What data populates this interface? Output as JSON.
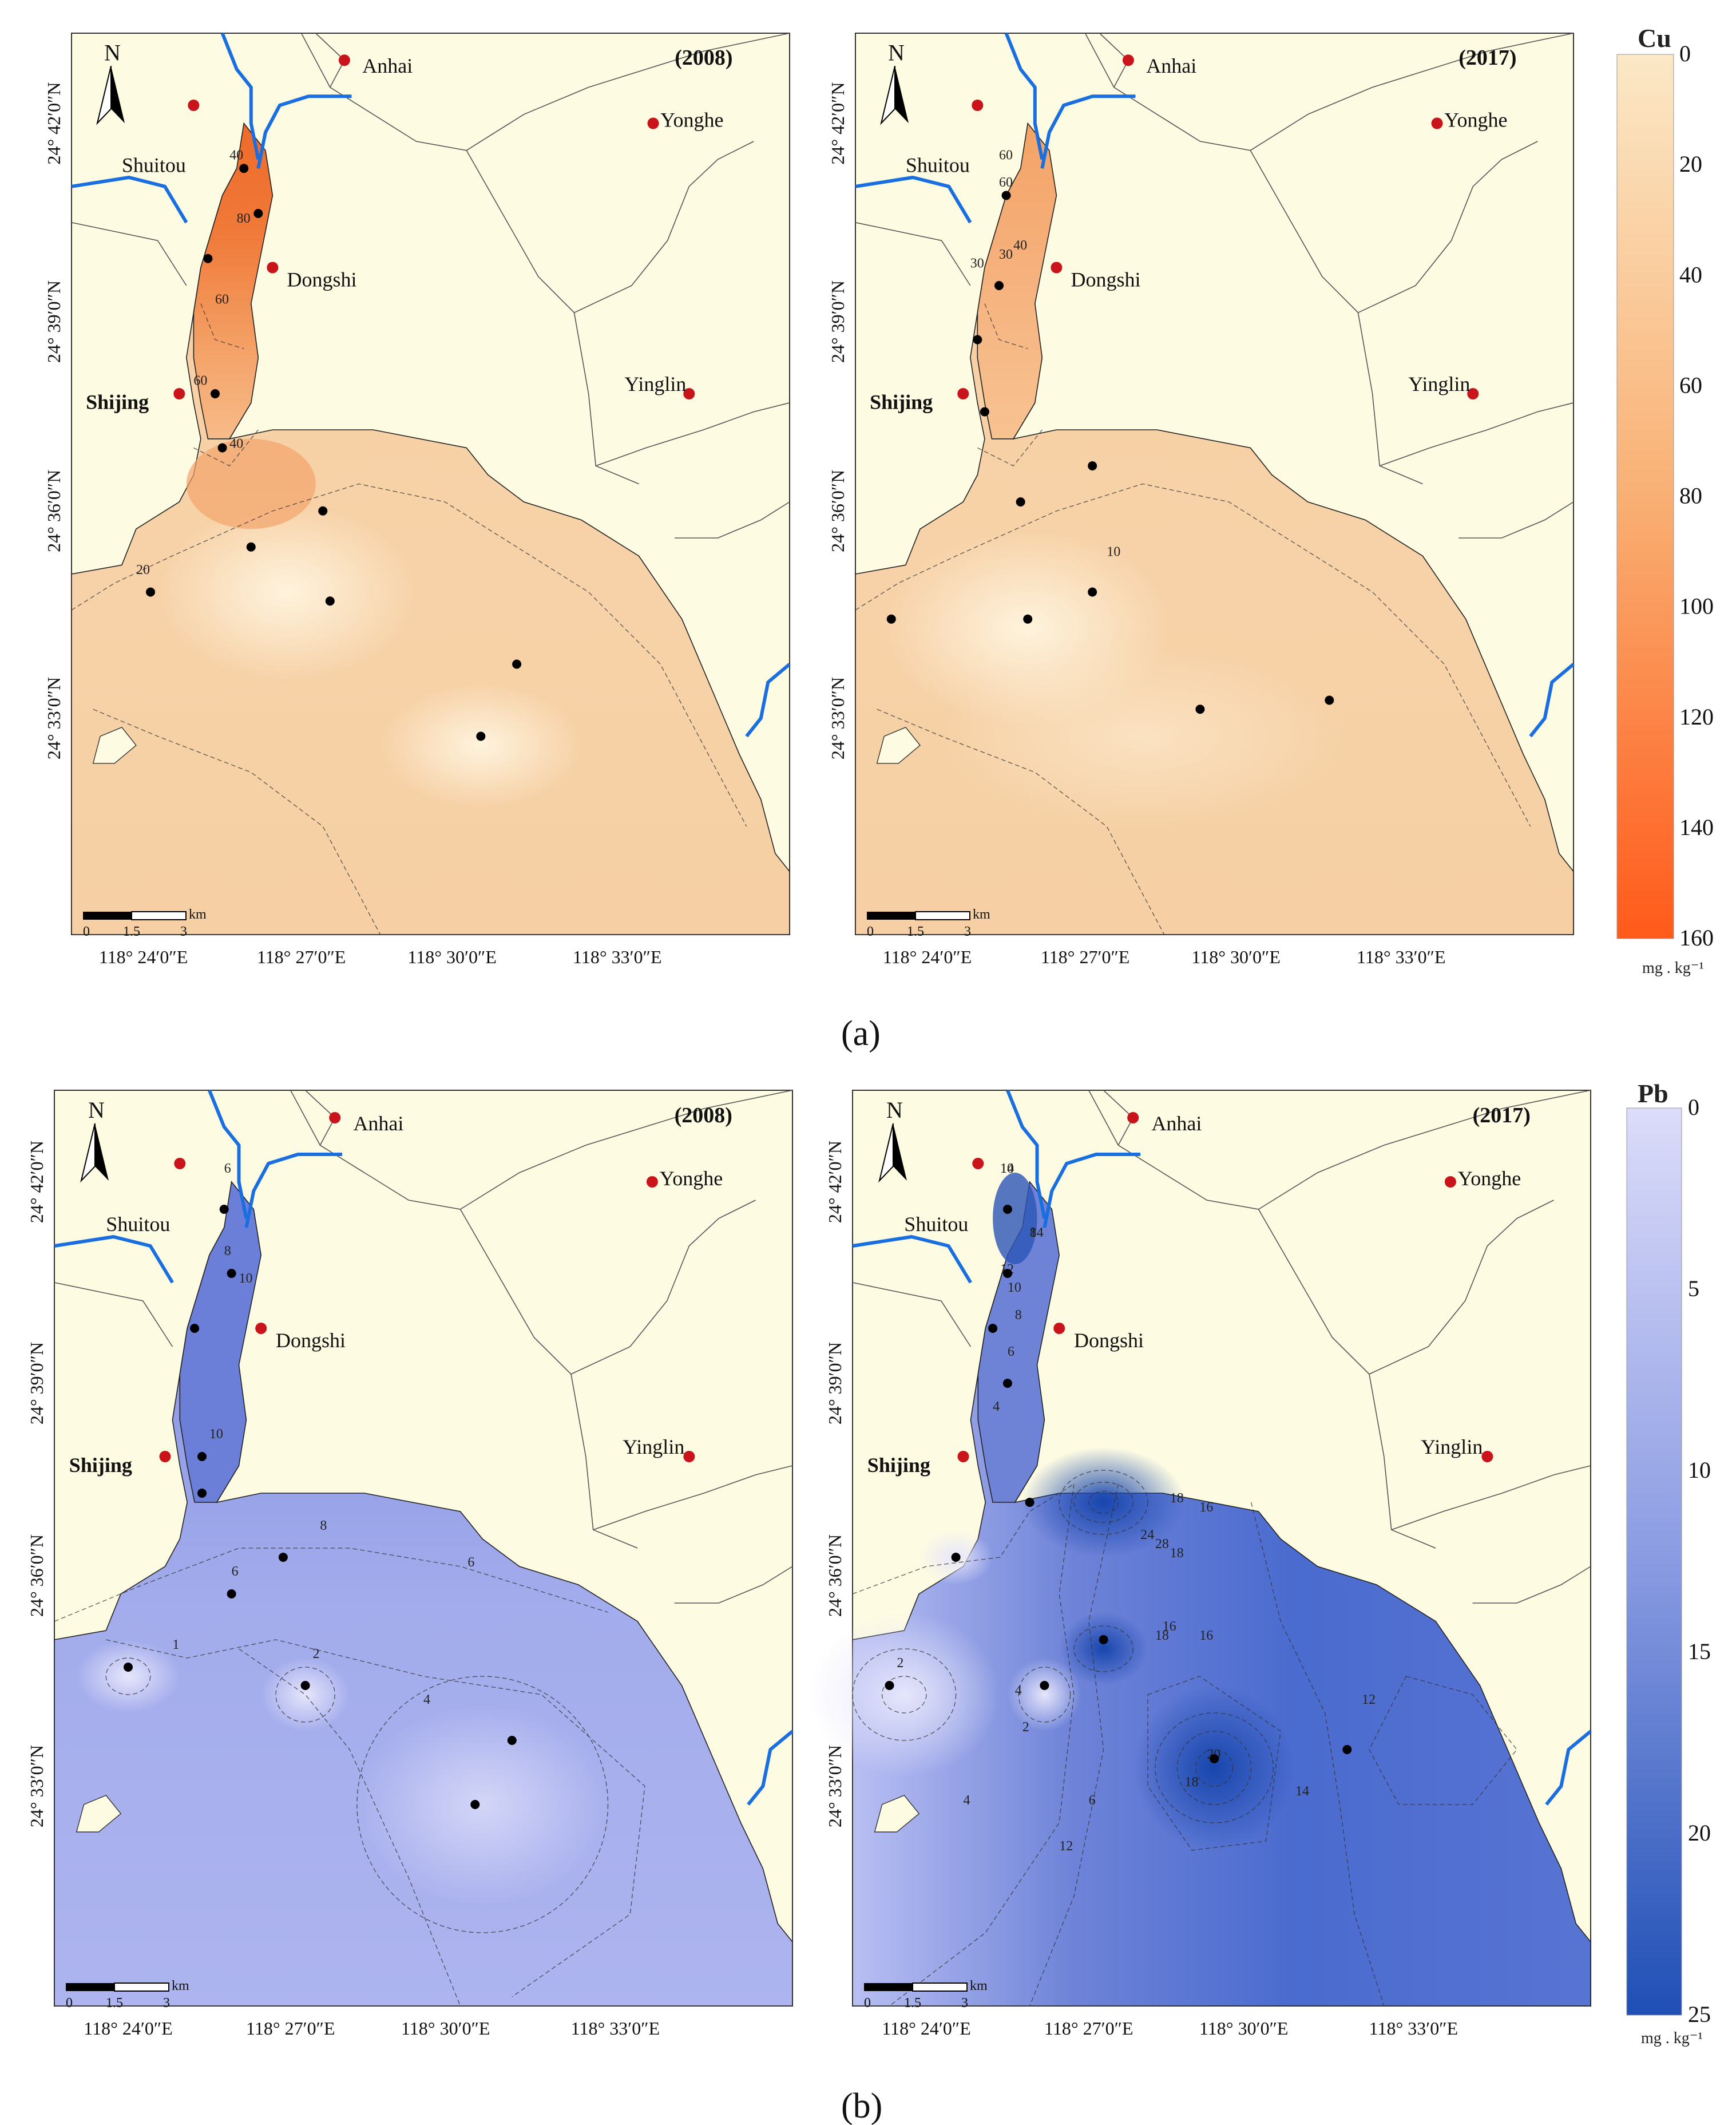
{
  "figure": {
    "panel_a_label": "(a)",
    "panel_b_label": "(b)",
    "north_letter": "N",
    "scale_unit": "km",
    "scale_ticks": [
      "0",
      "1.5",
      "3"
    ],
    "lat_labels": [
      "24° 42′0″N",
      "24° 39′0″N",
      "24° 36′0″N",
      "24° 33′0″N"
    ],
    "lon_labels_left": [
      "118° 24′0″E",
      "118° 27′0″E",
      "118° 30′0″E",
      "118° 33′0″E"
    ],
    "lon_labels_right": [
      "118° 24′0″E",
      "118° 27′0″E",
      "118° 30′0″E",
      "118° 33′0″E"
    ],
    "towns": [
      "Anhai",
      "Shuitou",
      "Yonghe",
      "Dongshi",
      "Yinglin",
      "Shijing"
    ],
    "years": [
      "(2008)",
      "(2017)"
    ]
  },
  "legends": {
    "cu": {
      "title": "Cu",
      "unit": "mg . kg⁻¹",
      "ticks": [
        "0",
        "20",
        "40",
        "60",
        "80",
        "100",
        "120",
        "140",
        "160"
      ],
      "color_low": "#fbe8c6",
      "color_high": "#ff5a1a"
    },
    "pb": {
      "title": "Pb",
      "unit": "mg . kg⁻¹",
      "ticks": [
        "0",
        "5",
        "10",
        "15",
        "20",
        "25"
      ],
      "color_low": "#dcdcfa",
      "color_high": "#1f4fb5"
    }
  },
  "maps": {
    "cu_2008": {
      "contours": [
        "40",
        "80",
        "60",
        "60",
        "40",
        "20"
      ]
    },
    "cu_2017": {
      "contours": [
        "60",
        "60",
        "30",
        "30",
        "40",
        "10"
      ]
    },
    "pb_2008": {
      "contours": [
        "6",
        "8",
        "10",
        "10",
        "8",
        "6",
        "6",
        "1",
        "2",
        "4"
      ]
    },
    "pb_2017": {
      "contours": [
        "14",
        "14",
        "12",
        "10",
        "8",
        "6",
        "4",
        "18",
        "16",
        "24",
        "28",
        "18",
        "16",
        "18",
        "16",
        "20",
        "18",
        "14",
        "12",
        "2",
        "4",
        "2",
        "4",
        "6",
        "12",
        "10",
        "8"
      ]
    }
  },
  "colors": {
    "land": "#fdfbe2",
    "river": "#1a6fe0",
    "town_marker": "#c8141a",
    "sample_point": "#000000"
  }
}
